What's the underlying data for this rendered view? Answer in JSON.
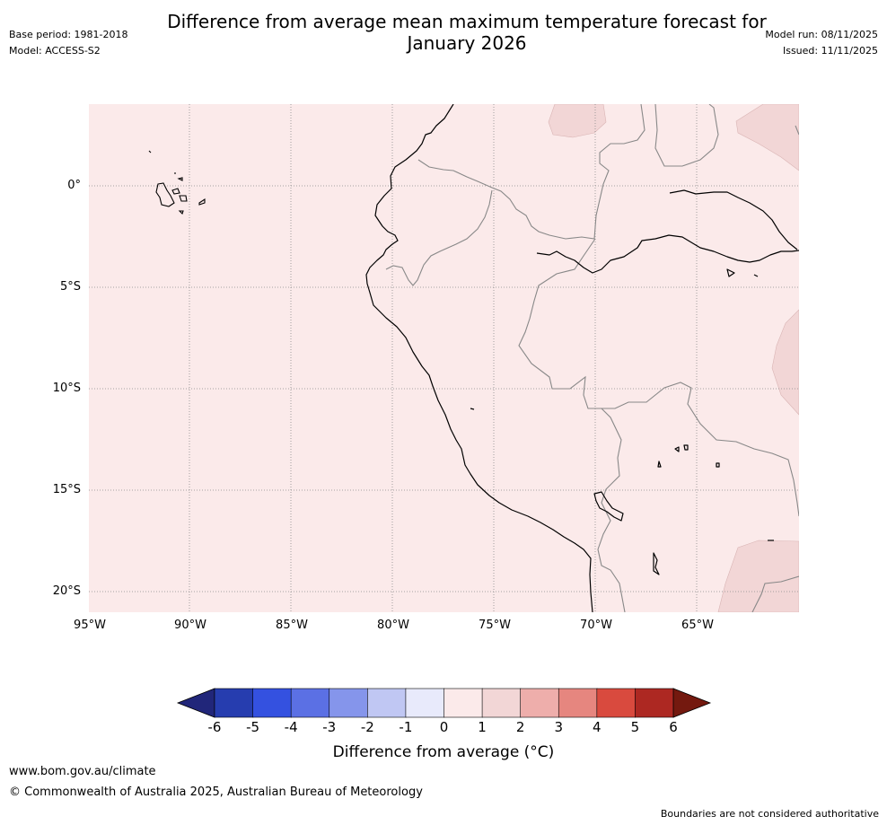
{
  "header": {
    "title_line1": "Difference from average mean maximum temperature forecast for",
    "title_line2": "January 2026",
    "base_period": "Base period: 1981-2018",
    "model": "Model: ACCESS-S2",
    "model_run": "Model run: 08/11/2025",
    "issued": "Issued: 11/11/2025"
  },
  "map": {
    "region": "Western South America (Ecuador, Peru, Bolivia)",
    "lat_labels": [
      "0°",
      "5°S",
      "10°S",
      "15°S",
      "20°S"
    ],
    "lon_labels": [
      "95°W",
      "90°W",
      "85°W",
      "80°W",
      "75°W",
      "70°W",
      "65°W"
    ],
    "background_category": "0 to 1",
    "patch_category": "1 to 2"
  },
  "colorbar": {
    "ticks": [
      "-6",
      "-5",
      "-4",
      "-3",
      "-2",
      "-1",
      "0",
      "1",
      "2",
      "3",
      "4",
      "5",
      "6"
    ],
    "colors": [
      "#21267a",
      "#263daf",
      "#3451e0",
      "#5b70e4",
      "#8595eb",
      "#c0c7f3",
      "#e8eafb",
      "#fbeaea",
      "#f2d6d6",
      "#eeaeab",
      "#e6867f",
      "#d94a3e",
      "#ad2822",
      "#74190f"
    ],
    "label": "Difference from average (°C)",
    "label_text": "Difference from average ($^\\circ$C)"
  },
  "footer": {
    "url": "www.bom.gov.au/climate",
    "copyright": "© Commonwealth of Australia 2025, Australian Bureau of Meteorology",
    "disclaimer": "Boundaries are not considered authoritative"
  }
}
